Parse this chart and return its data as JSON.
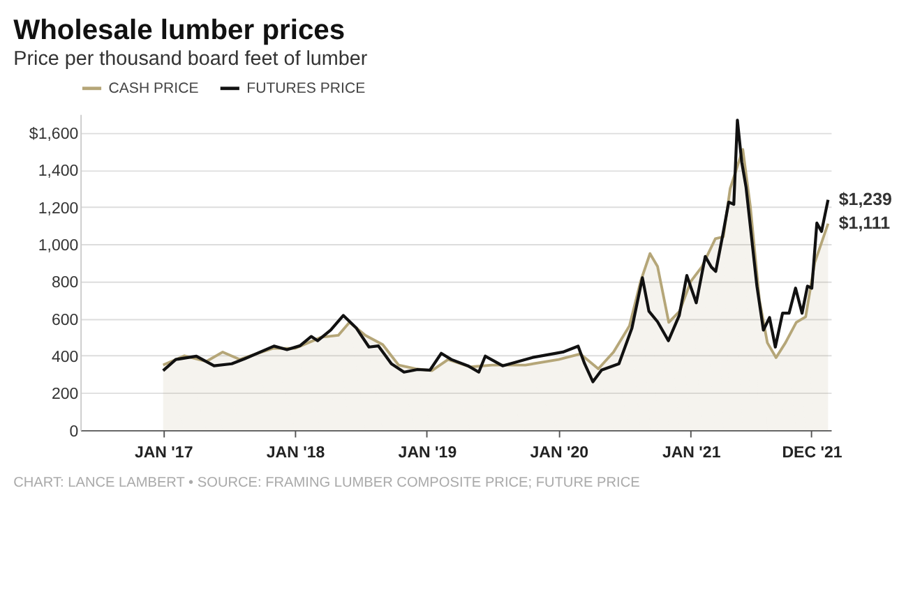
{
  "chart_data": {
    "type": "line",
    "title": "Wholesale lumber prices",
    "subtitle": "Price per thousand board feet of lumber",
    "series": [
      {
        "name": "CASH PRICE",
        "type": "area",
        "color": "#b5a678",
        "x": [
          "2017-01-01",
          "2017-03-01",
          "2017-05-01",
          "2017-06-15",
          "2017-08-01",
          "2017-09-15",
          "2017-11-01",
          "2018-01-01",
          "2018-03-15",
          "2018-05-01",
          "2018-06-01",
          "2018-07-15",
          "2018-09-01",
          "2018-10-15",
          "2018-12-01",
          "2019-01-15",
          "2019-03-01",
          "2019-05-01",
          "2019-07-01",
          "2019-10-01",
          "2020-01-01",
          "2020-03-01",
          "2020-04-20",
          "2020-06-01",
          "2020-07-15",
          "2020-08-15",
          "2020-09-10",
          "2020-10-01",
          "2020-11-01",
          "2020-12-01",
          "2021-01-01",
          "2021-02-01",
          "2021-03-10",
          "2021-04-01",
          "2021-04-20",
          "2021-05-25",
          "2021-06-15",
          "2021-07-10",
          "2021-08-01",
          "2021-08-25",
          "2021-09-20",
          "2021-10-20",
          "2021-11-15",
          "2021-12-10",
          "2022-01-16"
        ],
        "values": [
          350,
          400,
          370,
          420,
          380,
          410,
          440,
          440,
          500,
          510,
          580,
          510,
          460,
          350,
          330,
          320,
          380,
          340,
          350,
          350,
          380,
          410,
          330,
          420,
          560,
          800,
          950,
          880,
          580,
          640,
          800,
          880,
          1030,
          1040,
          1300,
          1510,
          1200,
          700,
          470,
          390,
          470,
          580,
          610,
          900,
          1111
        ]
      },
      {
        "name": "FUTURES PRICE",
        "type": "line",
        "color": "#111111",
        "x": [
          "2017-01-01",
          "2017-02-05",
          "2017-04-03",
          "2017-05-22",
          "2017-07-10",
          "2017-08-15",
          "2017-11-04",
          "2017-12-10",
          "2018-01-15",
          "2018-02-15",
          "2018-03-05",
          "2018-04-10",
          "2018-05-15",
          "2018-06-20",
          "2018-07-25",
          "2018-08-20",
          "2018-09-25",
          "2018-10-30",
          "2018-12-06",
          "2019-01-10",
          "2019-02-10",
          "2019-03-10",
          "2019-04-25",
          "2019-05-25",
          "2019-06-12",
          "2019-07-30",
          "2019-10-21",
          "2020-01-13",
          "2020-02-24",
          "2020-03-13",
          "2020-04-05",
          "2020-04-29",
          "2020-06-16",
          "2020-07-22",
          "2020-08-20",
          "2020-09-07",
          "2020-10-01",
          "2020-10-31",
          "2020-11-30",
          "2020-12-21",
          "2021-01-16",
          "2021-02-10",
          "2021-02-27",
          "2021-03-11",
          "2021-03-29",
          "2021-04-16",
          "2021-04-30",
          "2021-05-10",
          "2021-05-22",
          "2021-06-03",
          "2021-07-03",
          "2021-07-21",
          "2021-08-07",
          "2021-08-23",
          "2021-09-12",
          "2021-09-30",
          "2021-10-18",
          "2021-11-05",
          "2021-11-20",
          "2021-12-02",
          "2021-12-16",
          "2021-12-29",
          "2022-01-16"
        ],
        "values": [
          320,
          380,
          398,
          346,
          357,
          384,
          452,
          433,
          454,
          504,
          481,
          538,
          617,
          549,
          447,
          453,
          357,
          312,
          326,
          323,
          413,
          380,
          346,
          312,
          398,
          346,
          391,
          420,
          452,
          357,
          260,
          323,
          357,
          549,
          820,
          640,
          583,
          481,
          617,
          832,
          685,
          934,
          877,
          854,
          1035,
          1227,
          1215,
          1668,
          1442,
          1306,
          775,
          538,
          606,
          447,
          629,
          629,
          764,
          629,
          775,
          764,
          1114,
          1069,
          1239
        ]
      }
    ],
    "xlim": [
      "2016-05-17",
      "2022-01-24"
    ],
    "xticks": [
      {
        "value": "2017-01-01",
        "label": "JAN '17"
      },
      {
        "value": "2018-01-01",
        "label": "JAN '18"
      },
      {
        "value": "2019-01-01",
        "label": "JAN '19"
      },
      {
        "value": "2020-01-01",
        "label": "JAN '20"
      },
      {
        "value": "2021-01-01",
        "label": "JAN '21"
      },
      {
        "value": "2021-12-01",
        "label": "DEC '21"
      }
    ],
    "ylim": [
      0,
      1700
    ],
    "yticks": [
      {
        "value": 0,
        "label": "0"
      },
      {
        "value": 200,
        "label": "200"
      },
      {
        "value": 400,
        "label": "400"
      },
      {
        "value": 600,
        "label": "600"
      },
      {
        "value": 800,
        "label": "800"
      },
      {
        "value": 1000,
        "label": "1,000"
      },
      {
        "value": 1200,
        "label": "1,200"
      },
      {
        "value": 1400,
        "label": "1,400"
      },
      {
        "value": 1600,
        "label": "$1,600"
      }
    ],
    "grid": "y",
    "legend": "top left",
    "annotations": [
      {
        "text": "$1,239",
        "x": "2022-01-16",
        "y": 1239
      },
      {
        "text": "$1,111",
        "x": "2022-01-16",
        "y": 1111
      },
      "CHART: LANCE LAMBERT • SOURCE: FRAMING LUMBER COMPOSITE PRICE; FUTURE PRICE"
    ]
  }
}
